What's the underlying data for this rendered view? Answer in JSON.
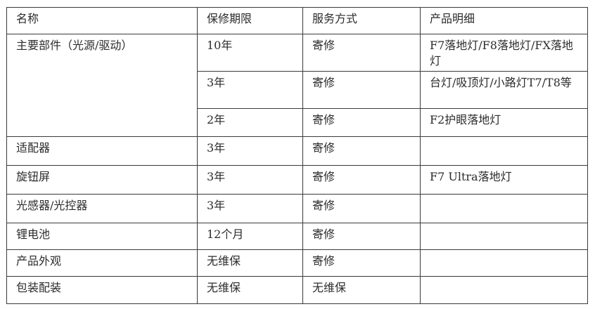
{
  "table": {
    "headers": {
      "name": "名称",
      "period": "保修期限",
      "service": "服务方式",
      "detail": "产品明细"
    },
    "rows": [
      {
        "name": "主要部件（光源/驱动）",
        "period": "10年",
        "service": "寄修",
        "detail": "F7落地灯/F8落地灯/FX落地灯"
      },
      {
        "period": "3年",
        "service": "寄修",
        "detail": "台灯/吸顶灯/小路灯T7/T8等"
      },
      {
        "period": "2年",
        "service": "寄修",
        "detail": "F2护眼落地灯"
      },
      {
        "name": "适配器",
        "period": "3年",
        "service": "寄修",
        "detail": ""
      },
      {
        "name": "旋钮屏",
        "period": "3年",
        "service": "寄修",
        "detail": "F7 Ultra落地灯"
      },
      {
        "name": "光感器/光控器",
        "period": "3年",
        "service": "寄修",
        "detail": ""
      },
      {
        "name": "锂电池",
        "period": "12个月",
        "service": "寄修",
        "detail": ""
      },
      {
        "name": "产品外观",
        "period": "无维保",
        "service": "寄修",
        "detail": ""
      },
      {
        "name": "包装配装",
        "period": "无维保",
        "service": "无维保",
        "detail": ""
      }
    ]
  },
  "colors": {
    "border": "#3a3a3a",
    "text": "#2b2b2b",
    "background": "#ffffff"
  }
}
